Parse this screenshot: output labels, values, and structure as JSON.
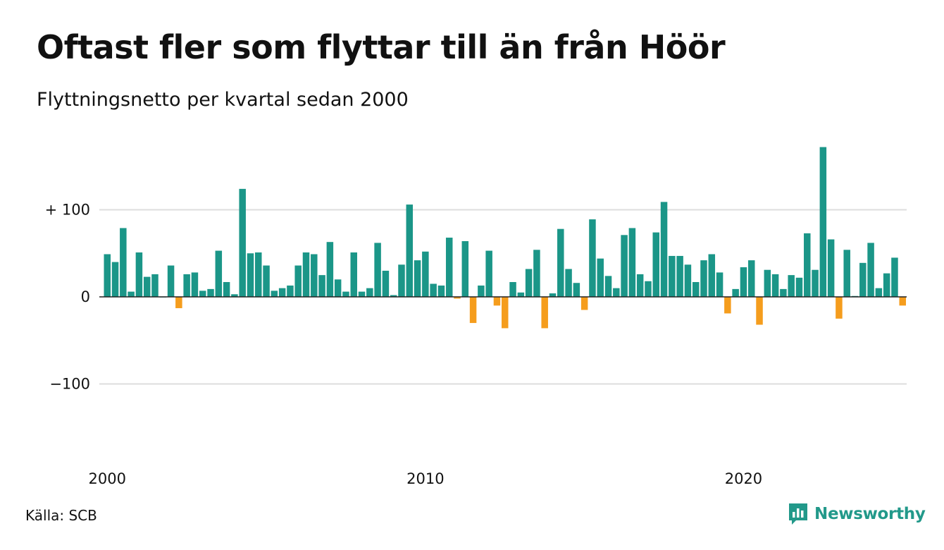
{
  "title": "Oftast fler som flyttar till än från Höör",
  "subtitle": "Flyttningsnetto per kvartal sedan 2000",
  "source": "Källa: SCB",
  "brand": {
    "name": "Newsworthy",
    "icon": "newsworthy-logo-icon"
  },
  "colors": {
    "positive": "#1b9688",
    "negative": "#f59d1d",
    "grid": "#dddddd",
    "baseline": "#222222",
    "brand": "#22998a"
  },
  "chart_data": {
    "type": "bar",
    "x_start": "2000",
    "period": "quarter",
    "y_ticks": [
      {
        "value": 100,
        "label": "+ 100"
      },
      {
        "value": 0,
        "label": "0"
      },
      {
        "value": -100,
        "label": "−100"
      }
    ],
    "x_ticks": [
      {
        "label": "2000",
        "year": 2000
      },
      {
        "label": "2010",
        "year": 2010
      },
      {
        "label": "2020",
        "year": 2020
      }
    ],
    "ylim": [
      -175,
      175
    ],
    "grid": true,
    "values": [
      49,
      40,
      79,
      6,
      51,
      23,
      26,
      0,
      36,
      -13,
      26,
      28,
      7,
      9,
      53,
      17,
      3,
      124,
      50,
      51,
      36,
      7,
      10,
      13,
      36,
      51,
      49,
      25,
      63,
      20,
      6,
      51,
      6,
      10,
      62,
      30,
      2,
      37,
      106,
      42,
      52,
      15,
      13,
      68,
      -2,
      64,
      -30,
      13,
      53,
      -10,
      -36,
      17,
      5,
      32,
      54,
      -36,
      4,
      78,
      32,
      16,
      -15,
      89,
      44,
      24,
      10,
      71,
      79,
      26,
      18,
      74,
      109,
      47,
      47,
      37,
      17,
      42,
      49,
      28,
      -19,
      9,
      34,
      42,
      -32,
      31,
      26,
      9,
      25,
      22,
      73,
      31,
      172,
      66,
      -25,
      54,
      1,
      39,
      62,
      10,
      27,
      45,
      -10
    ]
  }
}
